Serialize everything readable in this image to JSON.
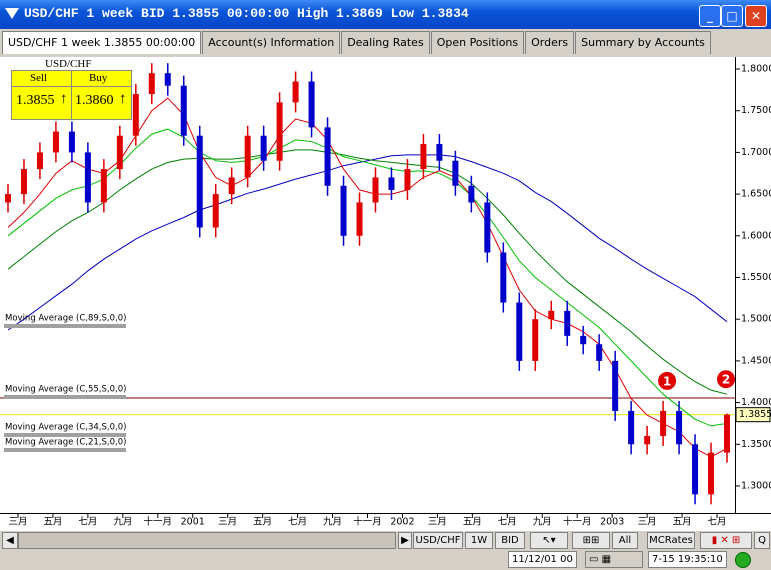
{
  "window": {
    "title": "USD/CHF 1 week BID 1.3855 00:00:00 High 1.3869 Low 1.3834"
  },
  "tabs": [
    "USD/CHF 1 week 1.3855 00:00:00",
    "Account(s) Information",
    "Dealing Rates",
    "Open Positions",
    "Orders",
    "Summary by Accounts"
  ],
  "quote": {
    "symbol": "USD/CHF",
    "sell_label": "Sell",
    "buy_label": "Buy",
    "sell": "1.3855",
    "buy": "1.3860"
  },
  "chart_data": {
    "type": "candlestick",
    "up_color": "#e00000",
    "down_color": "#0000cc",
    "x": [
      2,
      6,
      10,
      14,
      18,
      22,
      26,
      30,
      34,
      38,
      42,
      46,
      50,
      54,
      58,
      62,
      66,
      70,
      74,
      78,
      82,
      86,
      90,
      94,
      98,
      102,
      106,
      110,
      114,
      118,
      122,
      126,
      130,
      134,
      138,
      142,
      146,
      150,
      154,
      158,
      162,
      166,
      170,
      174,
      178,
      182
    ],
    "open": [
      1.64,
      1.65,
      1.68,
      1.7,
      1.725,
      1.7,
      1.64,
      1.68,
      1.72,
      1.77,
      1.795,
      1.78,
      1.72,
      1.61,
      1.65,
      1.67,
      1.72,
      1.69,
      1.76,
      1.785,
      1.73,
      1.66,
      1.6,
      1.64,
      1.67,
      1.655,
      1.68,
      1.71,
      1.69,
      1.66,
      1.64,
      1.58,
      1.52,
      1.45,
      1.5,
      1.51,
      1.48,
      1.47,
      1.45,
      1.39,
      1.35,
      1.36,
      1.39,
      1.35,
      1.29,
      1.34
    ],
    "high": [
      1.662,
      1.692,
      1.712,
      1.737,
      1.737,
      1.712,
      1.692,
      1.732,
      1.782,
      1.807,
      1.807,
      1.792,
      1.732,
      1.662,
      1.682,
      1.732,
      1.732,
      1.772,
      1.797,
      1.797,
      1.742,
      1.672,
      1.652,
      1.682,
      1.682,
      1.692,
      1.722,
      1.722,
      1.702,
      1.672,
      1.652,
      1.592,
      1.532,
      1.512,
      1.522,
      1.522,
      1.492,
      1.482,
      1.462,
      1.402,
      1.372,
      1.402,
      1.402,
      1.362,
      1.352,
      1.3869
    ],
    "low": [
      1.628,
      1.638,
      1.668,
      1.688,
      1.688,
      1.628,
      1.628,
      1.668,
      1.708,
      1.758,
      1.768,
      1.708,
      1.598,
      1.598,
      1.638,
      1.658,
      1.678,
      1.678,
      1.748,
      1.718,
      1.648,
      1.588,
      1.588,
      1.628,
      1.643,
      1.643,
      1.668,
      1.678,
      1.648,
      1.628,
      1.568,
      1.508,
      1.438,
      1.438,
      1.488,
      1.468,
      1.458,
      1.438,
      1.378,
      1.338,
      1.338,
      1.348,
      1.338,
      1.278,
      1.278,
      1.328
    ],
    "close": [
      1.65,
      1.68,
      1.7,
      1.725,
      1.7,
      1.64,
      1.68,
      1.72,
      1.77,
      1.795,
      1.78,
      1.72,
      1.61,
      1.65,
      1.67,
      1.72,
      1.69,
      1.76,
      1.785,
      1.73,
      1.66,
      1.6,
      1.64,
      1.67,
      1.655,
      1.68,
      1.71,
      1.69,
      1.66,
      1.64,
      1.58,
      1.52,
      1.45,
      1.5,
      1.51,
      1.48,
      1.47,
      1.45,
      1.39,
      1.35,
      1.36,
      1.39,
      1.35,
      1.29,
      1.34,
      1.3855
    ],
    "series": [
      {
        "name": "Moving Average (C,89,S,0,0)",
        "color": "#0000c0",
        "values": [
          1.487,
          1.5,
          1.514,
          1.528,
          1.542,
          1.558,
          1.572,
          1.584,
          1.596,
          1.606,
          1.614,
          1.622,
          1.631,
          1.637,
          1.644,
          1.651,
          1.656,
          1.662,
          1.668,
          1.673,
          1.678,
          1.684,
          1.688,
          1.692,
          1.696,
          1.697,
          1.697,
          1.697,
          1.695,
          1.689,
          1.682,
          1.675,
          1.666,
          1.652,
          1.641,
          1.627,
          1.612,
          1.597,
          1.585,
          1.572,
          1.56,
          1.549,
          1.538,
          1.527,
          1.512,
          1.497
        ]
      },
      {
        "name": "Moving Average (C,55,S,0,0)",
        "color": "#008000",
        "values": [
          1.56,
          1.575,
          1.59,
          1.605,
          1.618,
          1.628,
          1.64,
          1.655,
          1.668,
          1.68,
          1.688,
          1.692,
          1.693,
          1.692,
          1.692,
          1.694,
          1.697,
          1.7,
          1.703,
          1.703,
          1.7,
          1.697,
          1.693,
          1.69,
          1.688,
          1.686,
          1.684,
          1.682,
          1.675,
          1.663,
          1.645,
          1.625,
          1.603,
          1.582,
          1.563,
          1.545,
          1.53,
          1.515,
          1.5,
          1.485,
          1.468,
          1.452,
          1.438,
          1.425,
          1.415,
          1.41
        ]
      },
      {
        "name": "Moving Average (C,34,S,0,0)",
        "color": "#00c000",
        "values": [
          1.6,
          1.615,
          1.63,
          1.645,
          1.655,
          1.66,
          1.668,
          1.685,
          1.705,
          1.722,
          1.728,
          1.718,
          1.7,
          1.69,
          1.688,
          1.69,
          1.695,
          1.705,
          1.715,
          1.713,
          1.705,
          1.695,
          1.69,
          1.685,
          1.68,
          1.677,
          1.678,
          1.675,
          1.665,
          1.648,
          1.625,
          1.598,
          1.57,
          1.55,
          1.535,
          1.52,
          1.505,
          1.49,
          1.47,
          1.45,
          1.43,
          1.41,
          1.395,
          1.38,
          1.372,
          1.375
        ]
      },
      {
        "name": "Moving Average (C,21,S,0,0)",
        "color": "#e00000",
        "values": [
          1.61,
          1.628,
          1.65,
          1.675,
          1.69,
          1.68,
          1.675,
          1.69,
          1.72,
          1.75,
          1.765,
          1.745,
          1.7,
          1.67,
          1.66,
          1.67,
          1.69,
          1.72,
          1.74,
          1.735,
          1.715,
          1.68,
          1.655,
          1.65,
          1.65,
          1.655,
          1.67,
          1.678,
          1.67,
          1.648,
          1.615,
          1.575,
          1.535,
          1.51,
          1.5,
          1.495,
          1.485,
          1.47,
          1.44,
          1.405,
          1.385,
          1.375,
          1.365,
          1.345,
          1.335,
          1.345
        ]
      }
    ],
    "xlim": [
      0,
      184
    ],
    "xticks": [
      {
        "value": 4.5,
        "label": "三月"
      },
      {
        "value": 13.25,
        "label": "五月"
      },
      {
        "value": 22,
        "label": "七月"
      },
      {
        "value": 30.75,
        "label": "九月"
      },
      {
        "value": 39.5,
        "label": "十一月"
      },
      {
        "value": 48.25,
        "label": "2001"
      },
      {
        "value": 57,
        "label": "三月"
      },
      {
        "value": 65.75,
        "label": "五月"
      },
      {
        "value": 74.5,
        "label": "七月"
      },
      {
        "value": 83.25,
        "label": "九月"
      },
      {
        "value": 92,
        "label": "十一月"
      },
      {
        "value": 100.75,
        "label": "2002"
      },
      {
        "value": 109.5,
        "label": "三月"
      },
      {
        "value": 118.25,
        "label": "五月"
      },
      {
        "value": 127,
        "label": "七月"
      },
      {
        "value": 135.75,
        "label": "九月"
      },
      {
        "value": 144.5,
        "label": "十一月"
      },
      {
        "value": 153.25,
        "label": "2003"
      },
      {
        "value": 162,
        "label": "三月"
      },
      {
        "value": 170.75,
        "label": "五月"
      },
      {
        "value": 179.5,
        "label": "七月"
      }
    ],
    "ylim": [
      1.2676,
      1.8144
    ],
    "yticks": [
      {
        "value": 1.8,
        "label": "1.8000"
      },
      {
        "value": 1.75,
        "label": "1.7500"
      },
      {
        "value": 1.7,
        "label": "1.7000"
      },
      {
        "value": 1.65,
        "label": "1.6500"
      },
      {
        "value": 1.6,
        "label": "1.6000"
      },
      {
        "value": 1.55,
        "label": "1.5500"
      },
      {
        "value": 1.5,
        "label": "1.5000"
      },
      {
        "value": 1.45,
        "label": "1.4500"
      },
      {
        "value": 1.4,
        "label": "1.4000"
      },
      {
        "value": 1.35,
        "label": "1.3500"
      },
      {
        "value": 1.3,
        "label": "1.3000"
      }
    ],
    "hlines": [
      {
        "value": 1.4055,
        "color": "#800000"
      }
    ],
    "last_price": {
      "value": 1.3855,
      "label": "1.3855",
      "color": "#e8e800"
    },
    "annotations": [
      {
        "label": "1",
        "x": 167,
        "y": 1.426
      },
      {
        "label": "2",
        "x": 181.75,
        "y": 1.428
      }
    ]
  },
  "toolbar": {
    "symbol": "USD/CHF",
    "period": "1W",
    "price_type": "BID",
    "range": "All",
    "rates": "MCRates",
    "quick": "Q"
  },
  "status": {
    "cursor_time": "11/12/01 00",
    "clock": "7-15 19:35:10"
  }
}
